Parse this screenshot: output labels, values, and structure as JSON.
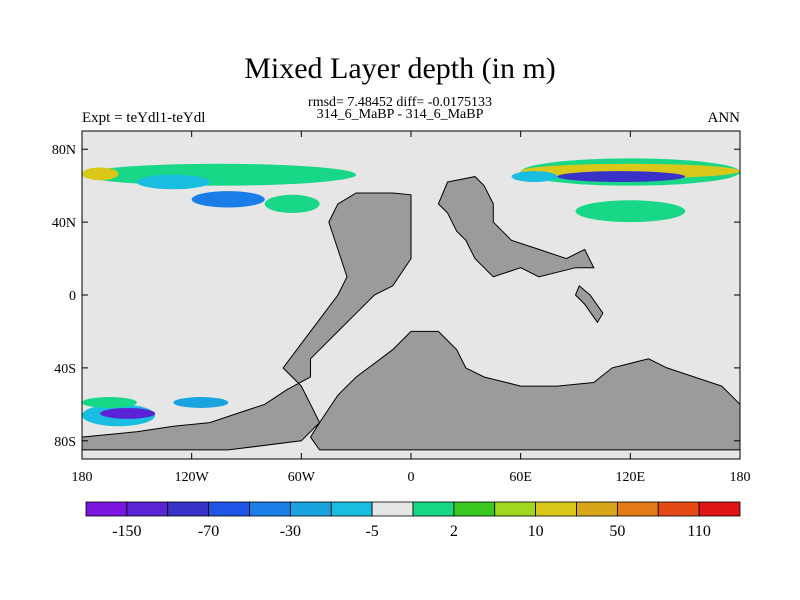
{
  "title": "Mixed Layer depth (in m)",
  "stats_line": "rmsd= 7.48452 diff= -0.0175133",
  "cases_line": "314_6_MaBP - 314_6_MaBP",
  "experiment_label": "Expt = teYdl1-teYdl",
  "season_label": "ANN",
  "colors": {
    "background_field": "#e6e6e6",
    "land": "#9b9b9b",
    "frame": "#000000"
  },
  "map": {
    "longitude_range": [
      -180,
      180
    ],
    "latitude_range": [
      -90,
      90
    ],
    "lon_ticks": [
      {
        "value": -180,
        "label": "180"
      },
      {
        "value": -120,
        "label": "120W"
      },
      {
        "value": -60,
        "label": "60W"
      },
      {
        "value": 0,
        "label": "0"
      },
      {
        "value": 60,
        "label": "60E"
      },
      {
        "value": 120,
        "label": "120E"
      },
      {
        "value": 180,
        "label": "180"
      }
    ],
    "lat_ticks": [
      {
        "value": 80,
        "label": "80N"
      },
      {
        "value": 40,
        "label": "40N"
      },
      {
        "value": 0,
        "label": "0"
      },
      {
        "value": -40,
        "label": "40S"
      },
      {
        "value": -80,
        "label": "80S"
      }
    ]
  },
  "colorbar": {
    "colors": [
      "#7a16e0",
      "#5a24d4",
      "#3a32c8",
      "#1f55e6",
      "#1a7de8",
      "#1ba3e0",
      "#18bde0",
      "#e6e6e6",
      "#18d787",
      "#39c820",
      "#9fd81e",
      "#d9c81a",
      "#d9a51a",
      "#e47a16",
      "#e44a16",
      "#e01616"
    ],
    "labels": [
      "-150",
      "-70",
      "-30",
      "-5",
      "2",
      "10",
      "50",
      "110"
    ]
  },
  "anomaly_regions": [
    {
      "name": "north-pacific-atlantic-band",
      "lon": [
        -180,
        -30
      ],
      "lat": [
        60,
        72
      ],
      "level": "green",
      "color": "#18d787"
    },
    {
      "name": "north-pacific-yellow",
      "lon": [
        -180,
        -160
      ],
      "lat": [
        63,
        70
      ],
      "level": "yellow",
      "color": "#d9c81a"
    },
    {
      "name": "north-pacific-cyan",
      "lon": [
        -150,
        -110
      ],
      "lat": [
        58,
        66
      ],
      "level": "cyan",
      "color": "#18bde0"
    },
    {
      "name": "north-band-east",
      "lon": [
        60,
        180
      ],
      "lat": [
        60,
        75
      ],
      "level": "green",
      "color": "#18d787"
    },
    {
      "name": "north-band-yellow",
      "lon": [
        60,
        180
      ],
      "lat": [
        64,
        72
      ],
      "level": "yellow",
      "color": "#d9c81a"
    },
    {
      "name": "north-band-deep",
      "lon": [
        80,
        150
      ],
      "lat": [
        62,
        68
      ],
      "level": "deep-blue",
      "color": "#3a32c8"
    },
    {
      "name": "north-cyan-east",
      "lon": [
        55,
        80
      ],
      "lat": [
        62,
        68
      ],
      "level": "cyan",
      "color": "#18bde0"
    },
    {
      "name": "north-midlat-band",
      "lon": [
        -120,
        -80
      ],
      "lat": [
        48,
        57
      ],
      "level": "cyan",
      "color": "#1a7de8"
    },
    {
      "name": "north-atlantic-green",
      "lon": [
        -80,
        -50
      ],
      "lat": [
        45,
        55
      ],
      "level": "green",
      "color": "#18d787"
    },
    {
      "name": "north-east-green",
      "lon": [
        90,
        150
      ],
      "lat": [
        40,
        52
      ],
      "level": "green",
      "color": "#18d787"
    },
    {
      "name": "south-pacific-band",
      "lon": [
        -180,
        -140
      ],
      "lat": [
        -72,
        -60
      ],
      "level": "cyan",
      "color": "#18bde0"
    },
    {
      "name": "south-pacific-deep",
      "lon": [
        -170,
        -140
      ],
      "lat": [
        -68,
        -62
      ],
      "level": "deep-blue",
      "color": "#5a24d4"
    },
    {
      "name": "south-pacific-green",
      "lon": [
        -180,
        -150
      ],
      "lat": [
        -62,
        -56
      ],
      "level": "green",
      "color": "#18d787"
    },
    {
      "name": "south-midlat-cyan",
      "lon": [
        -130,
        -100
      ],
      "lat": [
        -62,
        -56
      ],
      "level": "cyan",
      "color": "#1ba3e0"
    }
  ],
  "land_polygons": [
    {
      "name": "american-continent",
      "points": [
        [
          -40,
          50
        ],
        [
          -30,
          56
        ],
        [
          -10,
          56
        ],
        [
          0,
          55
        ],
        [
          0,
          20
        ],
        [
          -10,
          5
        ],
        [
          -20,
          0
        ],
        [
          -30,
          -10
        ],
        [
          -40,
          -20
        ],
        [
          -55,
          -35
        ],
        [
          -55,
          -45
        ],
        [
          -68,
          -52
        ],
        [
          -80,
          -60
        ],
        [
          -95,
          -65
        ],
        [
          -110,
          -70
        ],
        [
          -130,
          -72
        ],
        [
          -150,
          -75
        ],
        [
          -180,
          -78
        ],
        [
          -180,
          -85
        ],
        [
          -100,
          -85
        ],
        [
          -60,
          -80
        ],
        [
          -50,
          -70
        ],
        [
          -55,
          -60
        ],
        [
          -60,
          -50
        ],
        [
          -70,
          -40
        ],
        [
          -55,
          -20
        ],
        [
          -40,
          0
        ],
        [
          -35,
          10
        ],
        [
          -40,
          25
        ],
        [
          -45,
          40
        ],
        [
          -40,
          50
        ]
      ]
    },
    {
      "name": "east-landmass",
      "points": [
        [
          -50,
          -70
        ],
        [
          -40,
          -55
        ],
        [
          -30,
          -45
        ],
        [
          -10,
          -30
        ],
        [
          0,
          -20
        ],
        [
          15,
          -20
        ],
        [
          25,
          -30
        ],
        [
          30,
          -40
        ],
        [
          40,
          -45
        ],
        [
          60,
          -50
        ],
        [
          80,
          -50
        ],
        [
          100,
          -48
        ],
        [
          110,
          -40
        ],
        [
          130,
          -35
        ],
        [
          140,
          -40
        ],
        [
          155,
          -45
        ],
        [
          170,
          -50
        ],
        [
          175,
          -55
        ],
        [
          180,
          -60
        ],
        [
          180,
          -85
        ],
        [
          -50,
          -85
        ],
        [
          -55,
          -78
        ]
      ]
    },
    {
      "name": "north-landmass",
      "points": [
        [
          20,
          62
        ],
        [
          35,
          65
        ],
        [
          40,
          60
        ],
        [
          45,
          50
        ],
        [
          45,
          40
        ],
        [
          55,
          30
        ],
        [
          70,
          25
        ],
        [
          85,
          20
        ],
        [
          95,
          25
        ],
        [
          100,
          15
        ],
        [
          90,
          15
        ],
        [
          70,
          10
        ],
        [
          60,
          15
        ],
        [
          45,
          10
        ],
        [
          35,
          20
        ],
        [
          30,
          30
        ],
        [
          25,
          35
        ],
        [
          20,
          45
        ],
        [
          15,
          50
        ],
        [
          20,
          62
        ]
      ]
    },
    {
      "name": "east-island",
      "points": [
        [
          92,
          5
        ],
        [
          98,
          0
        ],
        [
          105,
          -10
        ],
        [
          102,
          -15
        ],
        [
          95,
          -5
        ],
        [
          90,
          0
        ]
      ]
    }
  ]
}
